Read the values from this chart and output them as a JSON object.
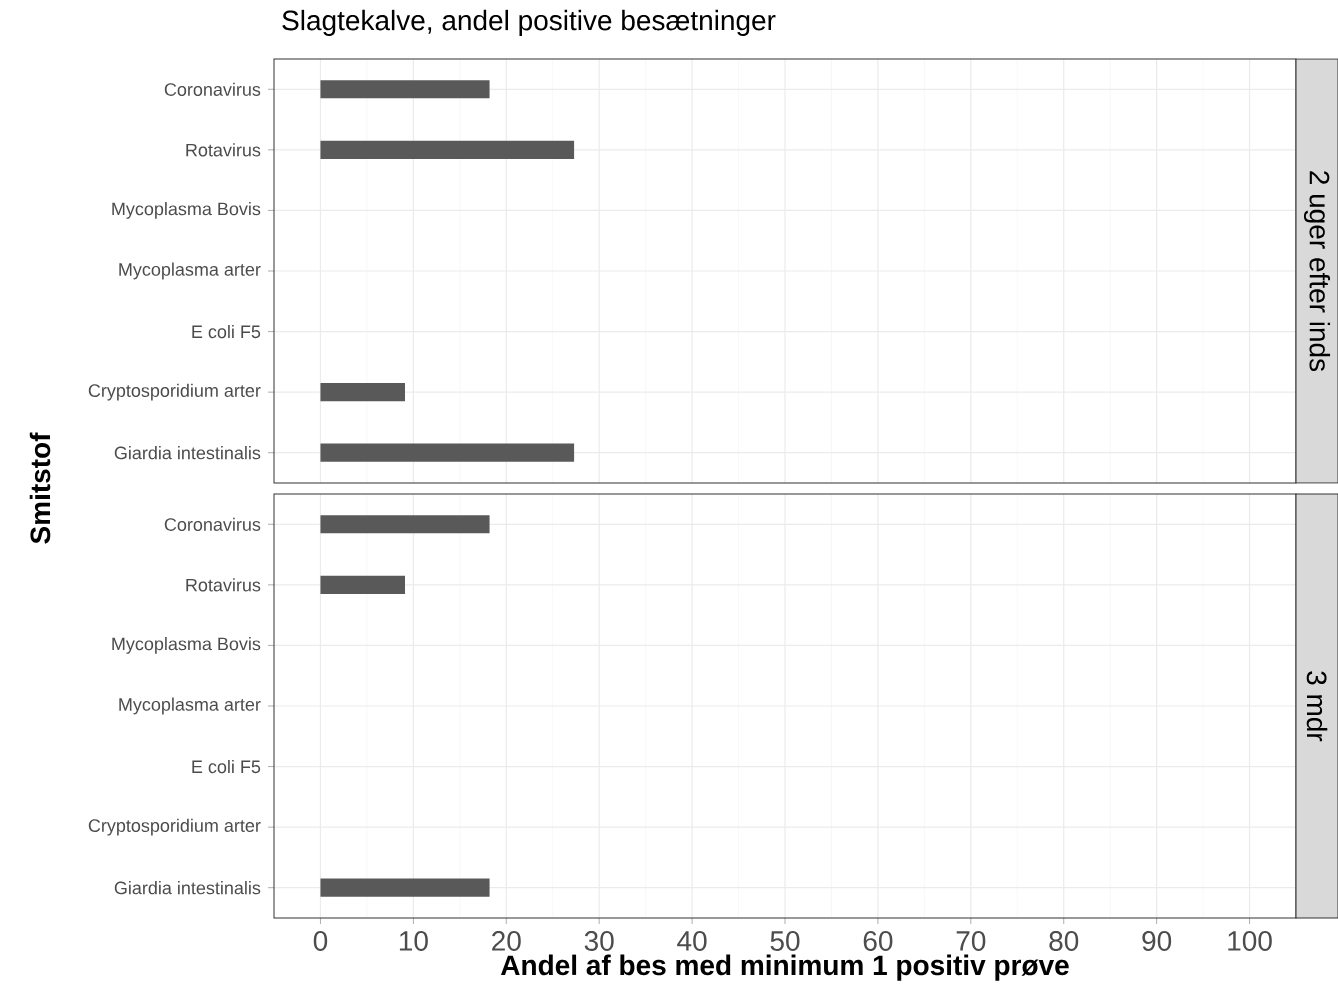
{
  "chart_data": [
    {
      "type": "bar",
      "orientation": "horizontal",
      "title": "Slagtekalve, andel positive besætninger",
      "ylabel": "Smitstof",
      "y2label": "2 uger efter inds",
      "categories": [
        "Coronavirus",
        "Rotavirus",
        "Mycoplasma Bovis",
        "Mycoplasma arter",
        "E coli F5",
        "Cryptosporidium arter",
        "Giardia intestinalis"
      ],
      "values": [
        18.2,
        27.3,
        0,
        0,
        0,
        9.1,
        27.3
      ],
      "color": "#595959",
      "xlim": [
        -5,
        105
      ],
      "xticks": [
        0,
        10,
        20,
        30,
        40,
        50,
        60,
        70,
        80,
        90,
        100
      ],
      "grid": true,
      "tick_labels": "y"
    },
    {
      "type": "bar",
      "orientation": "horizontal",
      "xlabel": "Andel af bes med minimum 1 positiv prøve",
      "y2label": "3 mdr",
      "categories": [
        "Coronavirus",
        "Rotavirus",
        "Mycoplasma Bovis",
        "Mycoplasma arter",
        "E coli F5",
        "Cryptosporidium arter",
        "Giardia intestinalis"
      ],
      "values": [
        18.2,
        9.1,
        0,
        0,
        0,
        0,
        18.2
      ],
      "color": "#595959",
      "xlim": [
        -5,
        105
      ],
      "xticks": [
        0,
        10,
        20,
        30,
        40,
        50,
        60,
        70,
        80,
        90,
        100
      ],
      "grid": true
    }
  ]
}
